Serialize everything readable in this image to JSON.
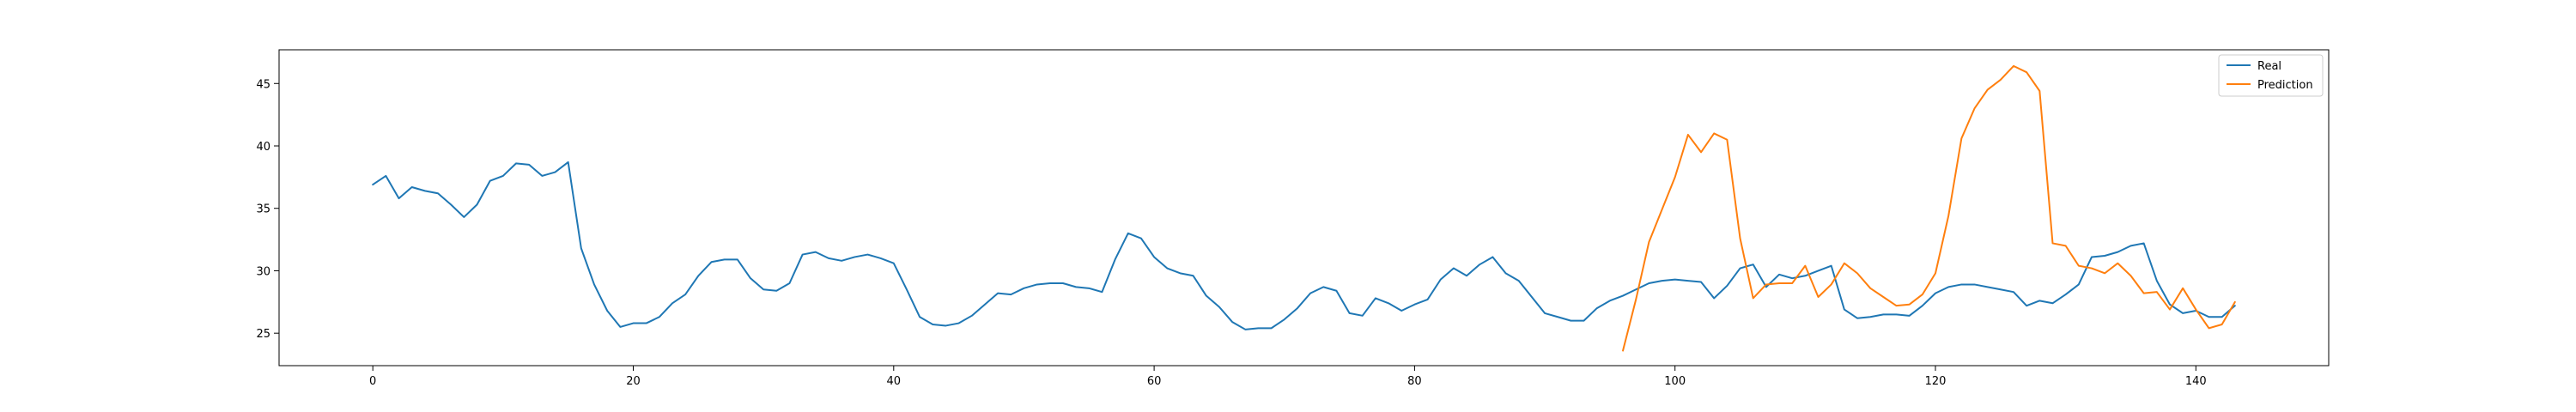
{
  "chart_data": {
    "type": "line",
    "title": "",
    "xlabel": "",
    "ylabel": "",
    "xlim": [
      -7.2,
      150.2
    ],
    "ylim": [
      22.4,
      47.7
    ],
    "grid": false,
    "legend_position": "top-right",
    "x_ticks": [
      0,
      20,
      40,
      60,
      80,
      100,
      120,
      140
    ],
    "y_ticks": [
      25,
      30,
      35,
      40,
      45
    ],
    "series": [
      {
        "name": "Real",
        "color": "#1f77b4",
        "x_start": 0,
        "values": [
          36.9,
          37.6,
          35.8,
          36.7,
          36.4,
          36.2,
          35.3,
          34.3,
          35.3,
          37.2,
          37.6,
          38.6,
          38.5,
          37.6,
          37.9,
          38.7,
          31.8,
          28.9,
          26.8,
          25.5,
          25.8,
          25.8,
          26.3,
          27.4,
          28.1,
          29.6,
          30.7,
          30.9,
          30.9,
          29.4,
          28.5,
          28.4,
          29.0,
          31.3,
          31.5,
          31.0,
          30.8,
          31.1,
          31.3,
          31.0,
          30.6,
          28.5,
          26.3,
          25.7,
          25.6,
          25.8,
          26.4,
          27.3,
          28.2,
          28.1,
          28.6,
          28.9,
          29.0,
          29.0,
          28.7,
          28.6,
          28.3,
          30.9,
          33.0,
          32.6,
          31.1,
          30.2,
          29.8,
          29.6,
          28.0,
          27.1,
          25.9,
          25.3,
          25.4,
          25.4,
          26.1,
          27.0,
          28.2,
          28.7,
          28.4,
          26.6,
          26.4,
          27.8,
          27.4,
          26.8,
          27.3,
          27.7,
          29.3,
          30.2,
          29.6,
          30.5,
          31.1,
          29.8,
          29.2,
          27.9,
          26.6,
          26.3,
          26.0,
          26.0,
          27.0,
          27.6,
          28.0,
          28.5,
          29.0,
          29.2,
          29.3,
          29.2,
          29.1,
          27.8,
          28.8,
          30.2,
          30.5,
          28.7,
          29.7,
          29.4,
          29.6,
          30.0,
          30.4,
          26.9,
          26.2,
          26.3,
          26.5,
          26.5,
          26.4,
          27.2,
          28.2,
          28.7,
          28.9,
          28.9,
          28.7,
          28.5,
          28.3,
          27.2,
          27.6,
          27.4,
          28.1,
          28.9,
          31.1,
          31.2,
          31.5,
          32.0,
          32.2,
          29.2,
          27.3,
          26.6,
          26.8,
          26.3,
          26.3,
          27.2
        ]
      },
      {
        "name": "Prediction",
        "color": "#ff7f0e",
        "x_start": 96,
        "values": [
          23.6,
          27.7,
          32.3,
          34.9,
          37.5,
          40.9,
          39.5,
          41.0,
          40.5,
          32.6,
          27.8,
          28.9,
          29.0,
          29.0,
          30.4,
          27.9,
          28.9,
          30.6,
          29.8,
          28.6,
          27.9,
          27.2,
          27.3,
          28.1,
          29.8,
          34.4,
          40.6,
          43.0,
          44.5,
          45.3,
          46.4,
          45.9,
          44.4,
          32.2,
          32.0,
          30.4,
          30.2,
          29.8,
          30.6,
          29.6,
          28.2,
          28.3,
          26.9,
          28.6,
          26.9,
          25.4,
          25.7,
          27.5
        ]
      }
    ]
  }
}
